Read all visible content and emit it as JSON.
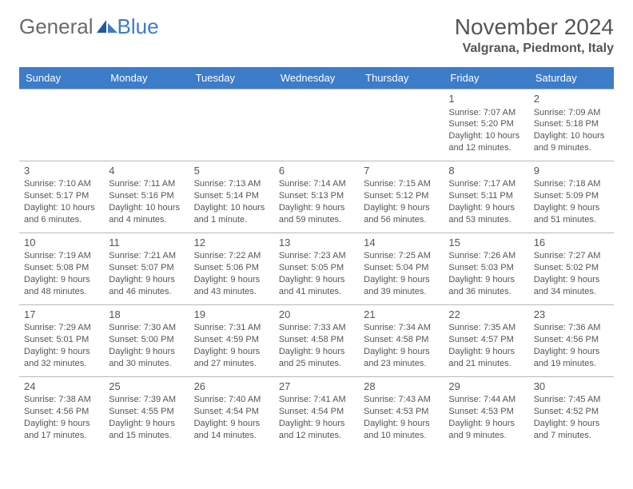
{
  "logo": {
    "text1": "General",
    "text2": "Blue"
  },
  "title": {
    "month": "November 2024",
    "location": "Valgrana, Piedmont, Italy"
  },
  "colors": {
    "header_bg": "#3d7cc9",
    "header_text": "#ffffff",
    "border": "#b8b8b8",
    "logo_gray": "#6a6a6a",
    "logo_blue": "#3d7cc9",
    "body_text": "#555555",
    "page_bg": "#ffffff"
  },
  "days_of_week": [
    "Sunday",
    "Monday",
    "Tuesday",
    "Wednesday",
    "Thursday",
    "Friday",
    "Saturday"
  ],
  "weeks": [
    [
      null,
      null,
      null,
      null,
      null,
      {
        "n": "1",
        "sr": "7:07 AM",
        "ss": "5:20 PM",
        "dl": "10 hours and 12 minutes."
      },
      {
        "n": "2",
        "sr": "7:09 AM",
        "ss": "5:18 PM",
        "dl": "10 hours and 9 minutes."
      }
    ],
    [
      {
        "n": "3",
        "sr": "7:10 AM",
        "ss": "5:17 PM",
        "dl": "10 hours and 6 minutes."
      },
      {
        "n": "4",
        "sr": "7:11 AM",
        "ss": "5:16 PM",
        "dl": "10 hours and 4 minutes."
      },
      {
        "n": "5",
        "sr": "7:13 AM",
        "ss": "5:14 PM",
        "dl": "10 hours and 1 minute."
      },
      {
        "n": "6",
        "sr": "7:14 AM",
        "ss": "5:13 PM",
        "dl": "9 hours and 59 minutes."
      },
      {
        "n": "7",
        "sr": "7:15 AM",
        "ss": "5:12 PM",
        "dl": "9 hours and 56 minutes."
      },
      {
        "n": "8",
        "sr": "7:17 AM",
        "ss": "5:11 PM",
        "dl": "9 hours and 53 minutes."
      },
      {
        "n": "9",
        "sr": "7:18 AM",
        "ss": "5:09 PM",
        "dl": "9 hours and 51 minutes."
      }
    ],
    [
      {
        "n": "10",
        "sr": "7:19 AM",
        "ss": "5:08 PM",
        "dl": "9 hours and 48 minutes."
      },
      {
        "n": "11",
        "sr": "7:21 AM",
        "ss": "5:07 PM",
        "dl": "9 hours and 46 minutes."
      },
      {
        "n": "12",
        "sr": "7:22 AM",
        "ss": "5:06 PM",
        "dl": "9 hours and 43 minutes."
      },
      {
        "n": "13",
        "sr": "7:23 AM",
        "ss": "5:05 PM",
        "dl": "9 hours and 41 minutes."
      },
      {
        "n": "14",
        "sr": "7:25 AM",
        "ss": "5:04 PM",
        "dl": "9 hours and 39 minutes."
      },
      {
        "n": "15",
        "sr": "7:26 AM",
        "ss": "5:03 PM",
        "dl": "9 hours and 36 minutes."
      },
      {
        "n": "16",
        "sr": "7:27 AM",
        "ss": "5:02 PM",
        "dl": "9 hours and 34 minutes."
      }
    ],
    [
      {
        "n": "17",
        "sr": "7:29 AM",
        "ss": "5:01 PM",
        "dl": "9 hours and 32 minutes."
      },
      {
        "n": "18",
        "sr": "7:30 AM",
        "ss": "5:00 PM",
        "dl": "9 hours and 30 minutes."
      },
      {
        "n": "19",
        "sr": "7:31 AM",
        "ss": "4:59 PM",
        "dl": "9 hours and 27 minutes."
      },
      {
        "n": "20",
        "sr": "7:33 AM",
        "ss": "4:58 PM",
        "dl": "9 hours and 25 minutes."
      },
      {
        "n": "21",
        "sr": "7:34 AM",
        "ss": "4:58 PM",
        "dl": "9 hours and 23 minutes."
      },
      {
        "n": "22",
        "sr": "7:35 AM",
        "ss": "4:57 PM",
        "dl": "9 hours and 21 minutes."
      },
      {
        "n": "23",
        "sr": "7:36 AM",
        "ss": "4:56 PM",
        "dl": "9 hours and 19 minutes."
      }
    ],
    [
      {
        "n": "24",
        "sr": "7:38 AM",
        "ss": "4:56 PM",
        "dl": "9 hours and 17 minutes."
      },
      {
        "n": "25",
        "sr": "7:39 AM",
        "ss": "4:55 PM",
        "dl": "9 hours and 15 minutes."
      },
      {
        "n": "26",
        "sr": "7:40 AM",
        "ss": "4:54 PM",
        "dl": "9 hours and 14 minutes."
      },
      {
        "n": "27",
        "sr": "7:41 AM",
        "ss": "4:54 PM",
        "dl": "9 hours and 12 minutes."
      },
      {
        "n": "28",
        "sr": "7:43 AM",
        "ss": "4:53 PM",
        "dl": "9 hours and 10 minutes."
      },
      {
        "n": "29",
        "sr": "7:44 AM",
        "ss": "4:53 PM",
        "dl": "9 hours and 9 minutes."
      },
      {
        "n": "30",
        "sr": "7:45 AM",
        "ss": "4:52 PM",
        "dl": "9 hours and 7 minutes."
      }
    ]
  ],
  "labels": {
    "sunrise": "Sunrise: ",
    "sunset": "Sunset: ",
    "daylight": "Daylight: "
  }
}
